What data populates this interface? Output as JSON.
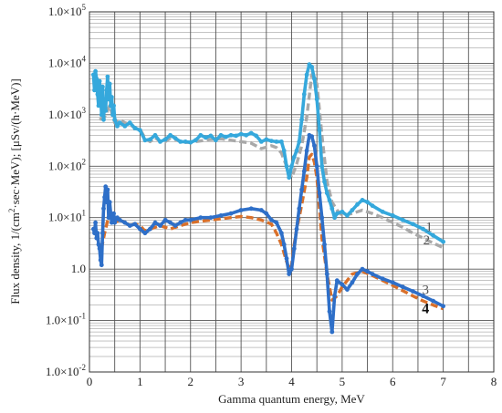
{
  "chart_data": {
    "type": "line",
    "title": "",
    "xlabel": "Gamma quantum energy, MeV",
    "ylabel_main": "Flux density, 1/(cm",
    "ylabel_sup1": "2",
    "ylabel_mid": "·sec·MeV); [μSv/(h·MeV)]",
    "ylabel": "Flux density, 1/(cm²·sec·MeV); [μSv/(h·MeV)]",
    "xlim": [
      0,
      8
    ],
    "ylim": [
      0.01,
      100000
    ],
    "yscale": "log",
    "grid": true,
    "x_ticks": [
      "0",
      "1",
      "2",
      "3",
      "4",
      "5",
      "6",
      "7",
      "8"
    ],
    "y_ticks": [
      {
        "mant": "1.0×10",
        "exp": "-2",
        "value": 0.01
      },
      {
        "mant": "1.0×10",
        "exp": "-1",
        "value": 0.1
      },
      {
        "mant": "1.0",
        "exp": "",
        "value": 1
      },
      {
        "mant": "1.0×10",
        "exp": "1",
        "value": 10
      },
      {
        "mant": "1.0×10",
        "exp": "2",
        "value": 100
      },
      {
        "mant": "1.0×10",
        "exp": "3",
        "value": 1000
      },
      {
        "mant": "1.0×10",
        "exp": "4",
        "value": 10000
      },
      {
        "mant": "1.0×10",
        "exp": "5",
        "value": 100000
      }
    ],
    "curve_labels": [
      {
        "text": "1",
        "x": 6.72,
        "y": 5.5
      },
      {
        "text": "2",
        "x": 6.67,
        "y": 3.0
      },
      {
        "text": "3",
        "x": 6.65,
        "y": 0.33
      },
      {
        "text": "4",
        "x": 6.65,
        "y": 0.14
      }
    ],
    "series": [
      {
        "color": "#35a8dc",
        "style": "dotted",
        "x": [
          0.08,
          0.1,
          0.12,
          0.14,
          0.16,
          0.18,
          0.2,
          0.22,
          0.24,
          0.26,
          0.28,
          0.3,
          0.32,
          0.34,
          0.36,
          0.38,
          0.4,
          0.42,
          0.44,
          0.46,
          0.48,
          0.5,
          0.55,
          0.6,
          0.7,
          0.8,
          0.9,
          1.0,
          1.1,
          1.2,
          1.3,
          1.4,
          1.5,
          1.6,
          1.7,
          1.8,
          1.9,
          2.0,
          2.1,
          2.2,
          2.3,
          2.4,
          2.5,
          2.6,
          2.7,
          2.8,
          2.9,
          3.0,
          3.1,
          3.2,
          3.3,
          3.4,
          3.5,
          3.6,
          3.7,
          3.8,
          3.85,
          3.9,
          3.95,
          4.0,
          4.05,
          4.1,
          4.15,
          4.2,
          4.25,
          4.3,
          4.35,
          4.4,
          4.45,
          4.5,
          4.55,
          4.6,
          4.65,
          4.7,
          4.75,
          4.8,
          4.85,
          4.9,
          5.0,
          5.1,
          5.2,
          5.3,
          5.4,
          5.5,
          5.6,
          5.8,
          6.0,
          6.2,
          6.4,
          6.6,
          6.8,
          7.0
        ],
        "y": [
          6000,
          3000,
          7000,
          5000,
          2500,
          1500,
          4500,
          2500,
          1000,
          3500,
          800,
          2000,
          1200,
          3000,
          5500,
          2000,
          4000,
          1500,
          2200,
          1000,
          1500,
          800,
          600,
          700,
          600,
          700,
          550,
          500,
          320,
          330,
          400,
          300,
          330,
          400,
          350,
          300,
          300,
          290,
          320,
          400,
          360,
          390,
          320,
          400,
          370,
          400,
          390,
          420,
          400,
          440,
          390,
          300,
          330,
          310,
          300,
          300,
          200,
          100,
          60,
          100,
          150,
          200,
          300,
          800,
          2500,
          6000,
          9500,
          8500,
          5000,
          2000,
          500,
          100,
          50,
          30,
          22,
          15,
          10,
          12,
          13,
          11,
          14,
          18,
          22,
          20,
          17,
          13,
          11,
          9,
          7.5,
          6,
          4.5,
          3.4
        ]
      },
      {
        "color": "#a9a9a9",
        "style": "dashed",
        "x": [
          0.2,
          0.3,
          0.4,
          0.5,
          0.6,
          0.7,
          0.8,
          0.9,
          1.0,
          1.1,
          1.2,
          1.3,
          1.4,
          1.5,
          1.6,
          1.7,
          1.8,
          1.9,
          2.0,
          2.2,
          2.4,
          2.6,
          2.8,
          3.0,
          3.2,
          3.4,
          3.6,
          3.7,
          3.8,
          3.9,
          4.0,
          4.1,
          4.2,
          4.3,
          4.4,
          4.5,
          4.6,
          4.7,
          4.8,
          4.9,
          5.0,
          5.2,
          5.4,
          5.6,
          5.8,
          6.0,
          6.2,
          6.4,
          6.6,
          6.8,
          7.0
        ],
        "y": [
          800,
          900,
          1500,
          700,
          800,
          700,
          650,
          550,
          520,
          350,
          300,
          360,
          300,
          300,
          350,
          330,
          300,
          290,
          290,
          310,
          330,
          340,
          320,
          300,
          280,
          220,
          250,
          230,
          180,
          100,
          60,
          110,
          250,
          900,
          6000,
          4000,
          400,
          50,
          20,
          14,
          11,
          12,
          14,
          12,
          10,
          8,
          6.5,
          5,
          4,
          3.2,
          2.6
        ]
      },
      {
        "color": "#2e6fc8",
        "style": "dotted",
        "x": [
          0.08,
          0.1,
          0.12,
          0.14,
          0.16,
          0.18,
          0.2,
          0.22,
          0.24,
          0.26,
          0.28,
          0.3,
          0.32,
          0.34,
          0.36,
          0.38,
          0.4,
          0.42,
          0.44,
          0.46,
          0.48,
          0.5,
          0.55,
          0.6,
          0.7,
          0.8,
          0.9,
          1.0,
          1.1,
          1.2,
          1.3,
          1.4,
          1.5,
          1.6,
          1.7,
          1.8,
          1.9,
          2.0,
          2.2,
          2.4,
          2.6,
          2.8,
          3.0,
          3.2,
          3.4,
          3.5,
          3.6,
          3.7,
          3.8,
          3.85,
          3.9,
          3.95,
          4.0,
          4.05,
          4.1,
          4.15,
          4.2,
          4.25,
          4.3,
          4.35,
          4.4,
          4.45,
          4.5,
          4.55,
          4.6,
          4.65,
          4.7,
          4.75,
          4.8,
          4.85,
          4.9,
          5.0,
          5.1,
          5.2,
          5.3,
          5.4,
          5.5,
          5.6,
          5.8,
          6.0,
          6.2,
          6.4,
          6.6,
          6.8,
          7.0
        ],
        "y": [
          6,
          5,
          8,
          4,
          5,
          3,
          2.5,
          1.5,
          1.2,
          5,
          15,
          25,
          40,
          20,
          35,
          10,
          20,
          12,
          8,
          9,
          12,
          8,
          10,
          9,
          8,
          7,
          7.5,
          6,
          5,
          6,
          8,
          7,
          9,
          8,
          7,
          8,
          9,
          9,
          10,
          10,
          11,
          12,
          14,
          15,
          14,
          12,
          9,
          8,
          5,
          3,
          1.6,
          0.8,
          1.0,
          2.5,
          6,
          15,
          35,
          80,
          200,
          400,
          380,
          250,
          100,
          30,
          10,
          3,
          0.8,
          0.15,
          0.06,
          0.3,
          0.6,
          0.5,
          0.4,
          0.55,
          0.8,
          1.0,
          0.9,
          0.8,
          0.65,
          0.55,
          0.45,
          0.37,
          0.3,
          0.24,
          0.19
        ]
      },
      {
        "color": "#d9702a",
        "style": "dashed",
        "x": [
          0.2,
          0.25,
          0.3,
          0.35,
          0.4,
          0.45,
          0.5,
          0.6,
          0.7,
          0.8,
          0.9,
          1.0,
          1.1,
          1.2,
          1.4,
          1.6,
          1.8,
          2.0,
          2.2,
          2.4,
          2.6,
          2.8,
          3.0,
          3.2,
          3.4,
          3.6,
          3.7,
          3.8,
          3.9,
          3.95,
          4.0,
          4.05,
          4.1,
          4.15,
          4.2,
          4.3,
          4.35,
          4.4,
          4.45,
          4.5,
          4.55,
          4.6,
          4.7,
          4.8,
          4.9,
          5.0,
          5.1,
          5.2,
          5.4,
          5.6,
          5.8,
          6.0,
          6.2,
          6.4,
          6.6,
          6.8,
          7.0
        ],
        "y": [
          3,
          2.8,
          5,
          8,
          12,
          9,
          8,
          9,
          8,
          7,
          7.5,
          7,
          5.5,
          6,
          7,
          6,
          7,
          8,
          8.5,
          9,
          9.5,
          10,
          10.5,
          10,
          9,
          7.5,
          5,
          3,
          1.4,
          1.0,
          1.2,
          3,
          6,
          10,
          18,
          60,
          150,
          170,
          120,
          60,
          15,
          4,
          0.8,
          0.25,
          0.3,
          0.45,
          0.6,
          0.8,
          0.9,
          0.75,
          0.6,
          0.48,
          0.38,
          0.3,
          0.24,
          0.2,
          0.17
        ]
      }
    ]
  }
}
